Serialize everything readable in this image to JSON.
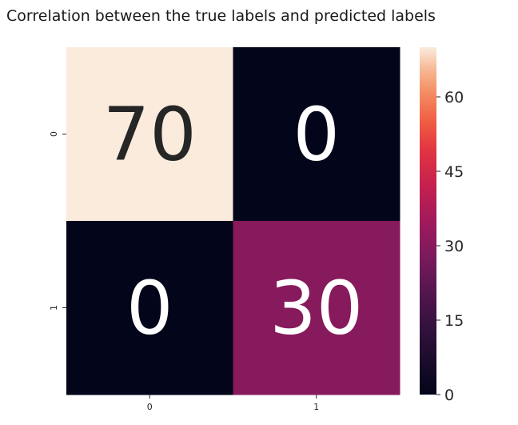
{
  "chart_data": {
    "type": "heatmap",
    "title": "Correlation between the true labels and predicted labels",
    "xlabel": "",
    "ylabel": "",
    "x_categories": [
      "0",
      "1"
    ],
    "y_categories": [
      "0",
      "1"
    ],
    "values": [
      [
        70,
        0
      ],
      [
        0,
        30
      ]
    ],
    "annotations": true,
    "colorbar": {
      "min": 0,
      "max": 70,
      "ticks": [
        0,
        15,
        30,
        45,
        60
      ],
      "colormap": "rocket",
      "placement": "right"
    },
    "colors": {
      "cell_high": "#faebdd",
      "cell_mid": "#b01a5a",
      "cell_low": "#03051a",
      "text_dark": "#262626",
      "text_light": "#ffffff"
    },
    "grid": false
  }
}
